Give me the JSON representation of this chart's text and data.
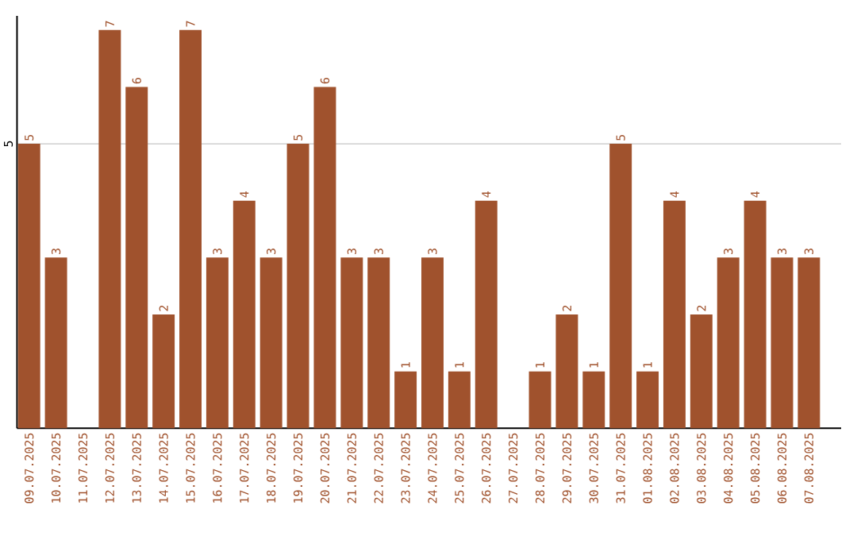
{
  "chart_data": {
    "type": "bar",
    "color": "#a0522d",
    "categories": [
      "09.07.2025",
      "10.07.2025",
      "11.07.2025",
      "12.07.2025",
      "13.07.2025",
      "14.07.2025",
      "15.07.2025",
      "16.07.2025",
      "17.07.2025",
      "18.07.2025",
      "19.07.2025",
      "20.07.2025",
      "21.07.2025",
      "22.07.2025",
      "23.07.2025",
      "24.07.2025",
      "25.07.2025",
      "26.07.2025",
      "27.07.2025",
      "28.07.2025",
      "29.07.2025",
      "30.07.2025",
      "31.07.2025",
      "01.08.2025",
      "02.08.2025",
      "03.08.2025",
      "04.08.2025",
      "05.08.2025",
      "06.08.2025",
      "07.08.2025"
    ],
    "values": [
      5,
      3,
      null,
      7,
      6,
      2,
      7,
      3,
      4,
      3,
      5,
      6,
      3,
      3,
      1,
      3,
      1,
      4,
      null,
      1,
      2,
      1,
      5,
      1,
      4,
      2,
      3,
      4,
      3,
      3
    ],
    "ylim": [
      0,
      7.25
    ],
    "yticks": [
      5
    ],
    "grid": "y",
    "data_labels": true
  }
}
